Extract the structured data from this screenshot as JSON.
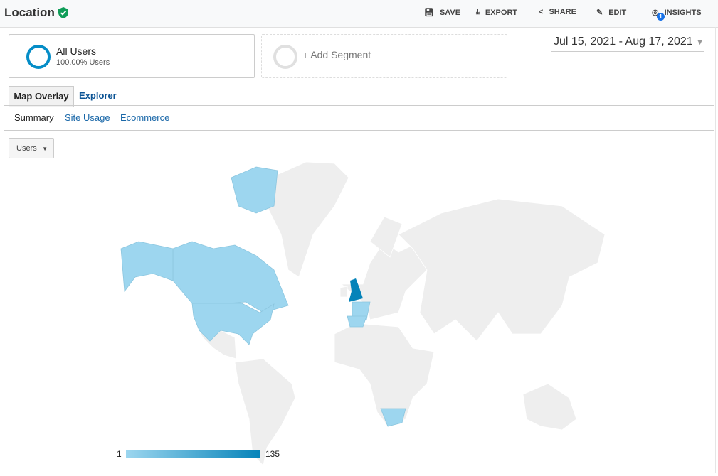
{
  "header": {
    "title": "Location",
    "toolbar": [
      "SAVE",
      "EXPORT",
      "SHARE",
      "EDIT",
      "INSIGHTS"
    ],
    "insights_badge": "1"
  },
  "segments": {
    "active": {
      "name": "All Users",
      "detail": "100.00% Users"
    },
    "add_label": "+ Add Segment"
  },
  "date_range": "Jul 15, 2021 - Aug 17, 2021",
  "tabs": [
    "Map Overlay",
    "Explorer"
  ],
  "subtabs": [
    "Summary",
    "Site Usage",
    "Ecommerce"
  ],
  "metric_select": "Users",
  "map": {
    "legend_min": "1",
    "legend_max": "135",
    "color_low": "#9cd6ef",
    "color_high": "#0583b9",
    "highlighted": [
      "United Kingdom",
      "United States",
      "Canada",
      "France",
      "Spain",
      "South Africa"
    ],
    "max_country": "United Kingdom"
  }
}
